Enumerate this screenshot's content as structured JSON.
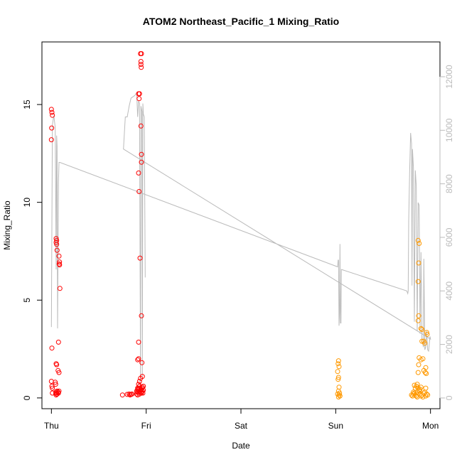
{
  "chart_data": {
    "type": "scatter",
    "title": "ATOM2 Northeast_Pacific_1 Mixing_Ratio",
    "xlabel": "Date",
    "ylabel": "Mixing_Ratio",
    "x_unit": "days",
    "x_ticks": [
      {
        "value": 0,
        "label": "Thu"
      },
      {
        "value": 1,
        "label": "Fri"
      },
      {
        "value": 2,
        "label": "Sat"
      },
      {
        "value": 3,
        "label": "Sun"
      },
      {
        "value": 4,
        "label": "Mon"
      }
    ],
    "xlim": [
      -0.1,
      4.1
    ],
    "ylim": [
      -0.55,
      18.2
    ],
    "y_ticks": [
      0,
      5,
      10,
      15
    ],
    "y2lim": [
      -400,
      13300
    ],
    "y2_ticks": [
      0,
      2000,
      4000,
      6000,
      8000,
      10000,
      12000
    ],
    "grid": false,
    "colors": {
      "series_red": "#ff0000",
      "series_orange": "#ff9900",
      "line": "#bbbbbb",
      "axis": "#000000",
      "axis2": "#bbbbbb"
    },
    "series": [
      {
        "color": "#ff0000",
        "points": [
          [
            0.0,
            14.75
          ],
          [
            0.005,
            14.6
          ],
          [
            0.01,
            14.45
          ],
          [
            0.003,
            13.8
          ],
          [
            0.0,
            13.2
          ],
          [
            0.005,
            2.55
          ],
          [
            0.05,
            8.15
          ],
          [
            0.055,
            8.05
          ],
          [
            0.05,
            7.95
          ],
          [
            0.055,
            7.85
          ],
          [
            0.06,
            7.55
          ],
          [
            0.08,
            7.25
          ],
          [
            0.085,
            6.95
          ],
          [
            0.082,
            6.85
          ],
          [
            0.086,
            6.8
          ],
          [
            0.09,
            5.6
          ],
          [
            0.075,
            2.85
          ],
          [
            0.05,
            1.75
          ],
          [
            0.055,
            1.7
          ],
          [
            0.07,
            1.4
          ],
          [
            0.08,
            1.3
          ],
          [
            0.0,
            0.85
          ],
          [
            0.005,
            0.6
          ],
          [
            0.01,
            0.5
          ],
          [
            0.04,
            0.8
          ],
          [
            0.045,
            0.7
          ],
          [
            0.045,
            0.25
          ],
          [
            0.05,
            0.3
          ],
          [
            0.055,
            0.2
          ],
          [
            0.06,
            0.35
          ],
          [
            0.07,
            0.3
          ],
          [
            0.075,
            0.25
          ],
          [
            0.08,
            0.35
          ],
          [
            0.05,
            0.15
          ],
          [
            0.06,
            0.2
          ],
          [
            0.01,
            0.25
          ],
          [
            0.75,
            0.15
          ],
          [
            0.8,
            0.18
          ],
          [
            0.82,
            0.2
          ],
          [
            0.84,
            0.18
          ],
          [
            0.85,
            0.2
          ],
          [
            0.83,
            0.15
          ],
          [
            0.94,
            17.6
          ],
          [
            0.95,
            17.6
          ],
          [
            0.945,
            17.2
          ],
          [
            0.945,
            17.05
          ],
          [
            0.948,
            16.9
          ],
          [
            0.93,
            15.55
          ],
          [
            0.92,
            15.55
          ],
          [
            0.925,
            15.3
          ],
          [
            0.945,
            13.9
          ],
          [
            0.95,
            12.45
          ],
          [
            0.95,
            12.05
          ],
          [
            0.92,
            11.5
          ],
          [
            0.925,
            10.55
          ],
          [
            0.935,
            7.15
          ],
          [
            0.95,
            4.2
          ],
          [
            0.92,
            2.85
          ],
          [
            0.92,
            2.0
          ],
          [
            0.91,
            1.95
          ],
          [
            0.955,
            1.8
          ],
          [
            0.94,
            1.0
          ],
          [
            0.96,
            1.1
          ],
          [
            0.93,
            0.85
          ],
          [
            0.92,
            0.7
          ],
          [
            0.91,
            0.5
          ],
          [
            0.9,
            0.35
          ],
          [
            0.905,
            0.3
          ],
          [
            0.91,
            0.45
          ],
          [
            0.915,
            0.4
          ],
          [
            0.92,
            0.3
          ],
          [
            0.925,
            0.5
          ],
          [
            0.93,
            0.6
          ],
          [
            0.935,
            0.35
          ],
          [
            0.94,
            0.4
          ],
          [
            0.945,
            0.45
          ],
          [
            0.95,
            0.3
          ],
          [
            0.955,
            0.5
          ],
          [
            0.96,
            0.35
          ],
          [
            0.965,
            0.25
          ],
          [
            0.97,
            0.4
          ],
          [
            0.9,
            0.2
          ],
          [
            0.91,
            0.15
          ],
          [
            0.93,
            0.2
          ],
          [
            0.95,
            0.25
          ],
          [
            0.96,
            0.55
          ],
          [
            0.97,
            0.6
          ]
        ]
      },
      {
        "color": "#ff9900",
        "points": [
          [
            3.03,
            1.9
          ],
          [
            3.025,
            1.75
          ],
          [
            3.035,
            1.6
          ],
          [
            3.02,
            1.35
          ],
          [
            3.03,
            1.05
          ],
          [
            3.025,
            0.95
          ],
          [
            3.035,
            0.55
          ],
          [
            3.03,
            0.35
          ],
          [
            3.04,
            0.25
          ],
          [
            3.035,
            0.15
          ],
          [
            3.045,
            0.1
          ],
          [
            3.02,
            0.2
          ],
          [
            3.03,
            0.05
          ],
          [
            3.8,
            0.15
          ],
          [
            3.82,
            0.2
          ],
          [
            3.81,
            0.1
          ],
          [
            3.84,
            0.5
          ],
          [
            3.85,
            0.6
          ],
          [
            3.83,
            0.65
          ],
          [
            3.86,
            0.7
          ],
          [
            3.87,
            8.05
          ],
          [
            3.88,
            7.9
          ],
          [
            3.875,
            6.9
          ],
          [
            3.87,
            5.95
          ],
          [
            3.875,
            4.2
          ],
          [
            3.87,
            3.95
          ],
          [
            3.88,
            2.05
          ],
          [
            3.875,
            1.7
          ],
          [
            3.87,
            1.3
          ],
          [
            3.9,
            3.55
          ],
          [
            3.91,
            3.5
          ],
          [
            3.91,
            2.9
          ],
          [
            3.93,
            2.9
          ],
          [
            3.94,
            2.8
          ],
          [
            3.96,
            3.35
          ],
          [
            3.965,
            3.25
          ],
          [
            3.92,
            2.0
          ],
          [
            3.9,
            1.95
          ],
          [
            3.95,
            1.55
          ],
          [
            3.945,
            1.3
          ],
          [
            3.955,
            1.25
          ],
          [
            3.93,
            1.4
          ],
          [
            3.95,
            0.5
          ],
          [
            3.96,
            0.2
          ],
          [
            3.85,
            0.1
          ],
          [
            3.86,
            0.3
          ],
          [
            3.88,
            0.4
          ],
          [
            3.89,
            0.2
          ],
          [
            3.9,
            0.1
          ],
          [
            3.91,
            0.15
          ],
          [
            3.92,
            0.05
          ],
          [
            3.93,
            0.25
          ],
          [
            3.94,
            0.3
          ],
          [
            3.95,
            0.1
          ],
          [
            3.97,
            0.15
          ],
          [
            3.86,
            0.05
          ],
          [
            3.84,
            0.15
          ],
          [
            3.83,
            0.25
          ],
          [
            3.82,
            0.3
          ],
          [
            3.87,
            0.5
          ],
          [
            3.89,
            0.45
          ],
          [
            3.9,
            0.55
          ],
          [
            3.88,
            0.35
          ]
        ]
      }
    ],
    "line_series": {
      "axis": "right",
      "color": "#bbbbbb",
      "points": [
        [
          0.0,
          2650
        ],
        [
          0.01,
          10200
        ],
        [
          0.025,
          10550
        ],
        [
          0.04,
          10100
        ],
        [
          0.05,
          4800
        ],
        [
          0.055,
          9800
        ],
        [
          0.06,
          9400
        ],
        [
          0.065,
          2600
        ],
        [
          0.075,
          8100
        ],
        [
          0.08,
          8800
        ],
        [
          0.09,
          8800
        ],
        [
          3.02,
          4900
        ],
        [
          3.025,
          5150
        ],
        [
          3.03,
          5150
        ],
        [
          3.035,
          2700
        ],
        [
          3.04,
          3200
        ],
        [
          3.045,
          5750
        ],
        [
          3.05,
          2800
        ],
        [
          3.055,
          2800
        ],
        [
          3.06,
          4800
        ],
        [
          3.75,
          4000
        ],
        [
          3.76,
          3900
        ],
        [
          3.765,
          4000
        ],
        [
          3.77,
          6600
        ],
        [
          3.78,
          8400
        ],
        [
          3.79,
          9900
        ],
        [
          3.8,
          9500
        ],
        [
          3.805,
          4200
        ],
        [
          3.81,
          9300
        ],
        [
          3.82,
          8600
        ],
        [
          3.83,
          2850
        ],
        [
          3.84,
          8500
        ],
        [
          3.85,
          7900
        ],
        [
          3.86,
          2500
        ],
        [
          3.87,
          7300
        ],
        [
          3.88,
          7200
        ],
        [
          3.89,
          2400
        ],
        [
          3.9,
          5450
        ],
        [
          3.91,
          2100
        ],
        [
          3.92,
          2000
        ],
        [
          3.925,
          1900
        ],
        [
          3.93,
          5200
        ],
        [
          3.94,
          1800
        ],
        [
          3.95,
          1900
        ],
        [
          3.96,
          2500
        ],
        [
          3.97,
          1800
        ],
        [
          3.98,
          1750
        ],
        [
          3.995,
          2300
        ],
        [
          4.0,
          2200
        ],
        [
          0.76,
          9300
        ],
        [
          0.78,
          10500
        ],
        [
          0.8,
          10500
        ],
        [
          0.82,
          10900
        ],
        [
          0.84,
          11200
        ],
        [
          0.86,
          11250
        ],
        [
          0.88,
          11300
        ],
        [
          0.9,
          11400
        ],
        [
          0.91,
          10500
        ],
        [
          0.92,
          11100
        ],
        [
          0.93,
          11000
        ],
        [
          0.94,
          600
        ],
        [
          0.945,
          10900
        ],
        [
          0.95,
          10800
        ],
        [
          0.955,
          10700
        ],
        [
          0.96,
          800
        ],
        [
          0.965,
          11000
        ],
        [
          0.97,
          10600
        ],
        [
          0.98,
          10500
        ],
        [
          0.99,
          4500
        ]
      ]
    }
  }
}
